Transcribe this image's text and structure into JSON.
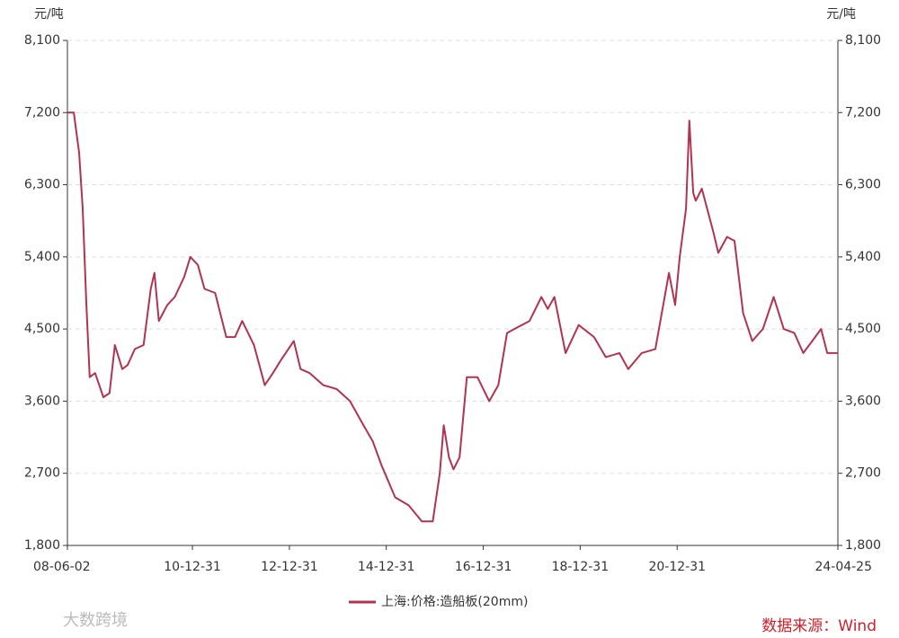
{
  "chart_data": {
    "type": "line",
    "y_unit": "元/吨",
    "source": "数据来源：Wind",
    "watermark": "大数跨境",
    "x": [
      "08-06-02",
      "08-07-20",
      "08-08-29",
      "08-09-25",
      "08-10-23",
      "08-11-17",
      "08-12-28",
      "09-02-28",
      "09-04-15",
      "09-05-26",
      "09-07-20",
      "09-08-29",
      "09-10-23",
      "09-12-28",
      "10-02-20",
      "10-03-20",
      "10-04-22",
      "10-06-25",
      "10-08-20",
      "10-10-30",
      "10-12-15",
      "11-02-10",
      "11-04-01",
      "11-06-20",
      "11-09-12",
      "11-11-17",
      "12-01-10",
      "12-04-08",
      "12-06-28",
      "12-08-29",
      "12-10-23",
      "13-02-02",
      "13-03-25",
      "13-06-02",
      "13-09-12",
      "13-12-23",
      "14-04-01",
      "14-07-12",
      "14-09-20",
      "14-11-25",
      "15-03-08",
      "15-06-18",
      "15-09-25",
      "15-12-16",
      "16-02-07",
      "16-03-08",
      "16-04-16",
      "16-05-20",
      "16-07-05",
      "16-08-29",
      "16-11-17",
      "17-02-14",
      "17-04-23",
      "17-06-28",
      "17-08-22",
      "17-12-14",
      "18-03-14",
      "18-05-01",
      "18-06-20",
      "18-09-12",
      "18-12-20",
      "19-04-15",
      "19-07-12",
      "19-10-23",
      "19-12-28",
      "20-04-08",
      "20-07-20",
      "20-10-30",
      "20-12-16",
      "21-01-19",
      "21-03-08",
      "21-04-02",
      "21-05-01",
      "21-05-20",
      "21-07-05",
      "21-10-01",
      "21-11-06",
      "22-01-11",
      "22-03-08",
      "22-05-12",
      "22-07-20",
      "22-10-08",
      "22-12-28",
      "23-03-14",
      "23-06-02",
      "23-08-08",
      "23-10-15",
      "23-12-20",
      "24-02-05",
      "24-04-25"
    ],
    "series": [
      {
        "name": "上海:价格:造船板(20mm)",
        "color": "#b0344f",
        "values": [
          7200,
          7200,
          6700,
          6000,
          4800,
          3900,
          3950,
          3650,
          3700,
          4300,
          4000,
          4050,
          4250,
          4300,
          5000,
          5200,
          4600,
          4800,
          4900,
          5150,
          5400,
          5300,
          5000,
          4950,
          4400,
          4400,
          4600,
          4300,
          3800,
          3950,
          4100,
          4350,
          4000,
          3950,
          3800,
          3750,
          3600,
          3300,
          3100,
          2800,
          2400,
          2300,
          2100,
          2100,
          2700,
          3300,
          2900,
          2750,
          2900,
          3900,
          3900,
          3600,
          3800,
          4450,
          4500,
          4600,
          4900,
          4750,
          4900,
          4200,
          4550,
          4400,
          4150,
          4200,
          4000,
          4200,
          4250,
          5200,
          4800,
          5400,
          6000,
          7100,
          6200,
          6100,
          6250,
          5700,
          5450,
          5650,
          5600,
          4700,
          4350,
          4500,
          4900,
          4500,
          4450,
          4200,
          4350,
          4500,
          4200,
          4200
        ]
      }
    ],
    "xticks": [
      "08-06-02",
      "10-12-31",
      "12-12-31",
      "14-12-31",
      "16-12-31",
      "18-12-31",
      "20-12-31",
      "24-04-25"
    ],
    "ylim": [
      1800,
      8100
    ],
    "yticks": [
      {
        "value": 1800,
        "label": "1,800"
      },
      {
        "value": 2700,
        "label": "2,700"
      },
      {
        "value": 3600,
        "label": "3,600"
      },
      {
        "value": 4500,
        "label": "4,500"
      },
      {
        "value": 5400,
        "label": "5,400"
      },
      {
        "value": 6300,
        "label": "6,300"
      },
      {
        "value": 7200,
        "label": "7,200"
      },
      {
        "value": 8100,
        "label": "8,100"
      }
    ],
    "grid": true
  }
}
